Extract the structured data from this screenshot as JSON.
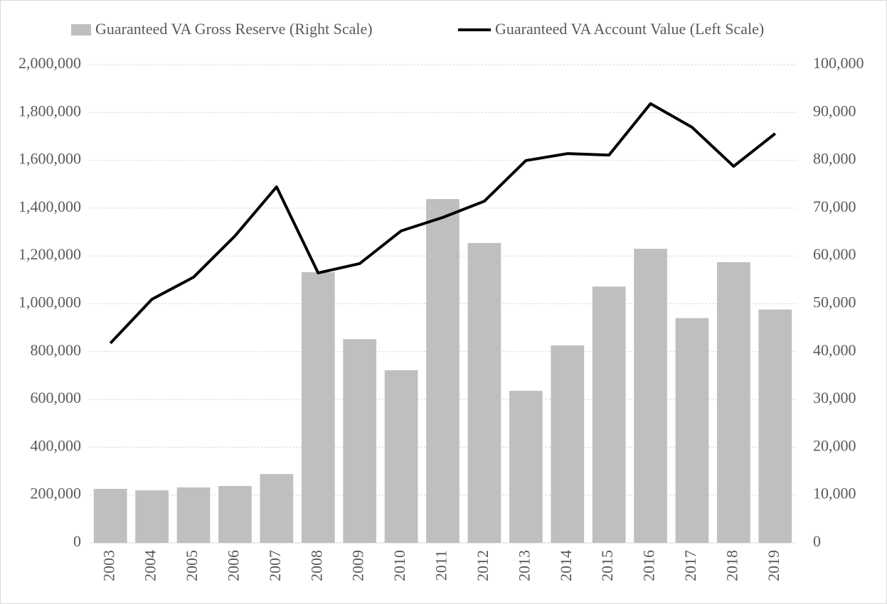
{
  "chart_data": {
    "type": "bar_line",
    "categories": [
      "2003",
      "2004",
      "2005",
      "2006",
      "2007",
      "2008",
      "2009",
      "2010",
      "2011",
      "2012",
      "2013",
      "2014",
      "2015",
      "2016",
      "2017",
      "2018",
      "2019"
    ],
    "series": [
      {
        "name": "Guaranteed VA Gross Reserve (Right Scale)",
        "type": "bar",
        "axis": "y2",
        "color": "#bfbfbf",
        "values": [
          11300,
          11000,
          11600,
          11900,
          14400,
          56600,
          42600,
          36100,
          71900,
          62700,
          31800,
          41300,
          53600,
          61500,
          47000,
          58700,
          48800
        ]
      },
      {
        "name": "Guaranteed VA Account Value (Left Scale)",
        "type": "line",
        "axis": "y",
        "color": "#000000",
        "values": [
          835000,
          1019000,
          1111000,
          1284000,
          1489000,
          1129000,
          1168000,
          1305000,
          1361000,
          1429000,
          1599000,
          1628000,
          1622000,
          1837000,
          1738000,
          1575000,
          1712000
        ]
      }
    ],
    "ylim": [
      0,
      2000000
    ],
    "yticks": [
      0,
      {
        "value": 200000,
        "label": "200,000"
      },
      {
        "value": 400000,
        "label": "400,000"
      },
      {
        "value": 600000,
        "label": "600,000"
      },
      {
        "value": 800000,
        "label": "800,000"
      },
      {
        "value": 1000000,
        "label": "1,000,000"
      },
      {
        "value": 1200000,
        "label": "1,200,000"
      },
      {
        "value": 1400000,
        "label": "1,400,000"
      },
      {
        "value": 1600000,
        "label": "1,600,000"
      },
      {
        "value": 1800000,
        "label": "1,800,000"
      },
      {
        "value": 2000000,
        "label": "2,000,000"
      }
    ],
    "y2lim": [
      0,
      100000
    ],
    "y2ticks": [
      0,
      {
        "value": 10000,
        "label": "10,000"
      },
      {
        "value": 20000,
        "label": "20,000"
      },
      {
        "value": 30000,
        "label": "30,000"
      },
      {
        "value": 40000,
        "label": "40,000"
      },
      {
        "value": 50000,
        "label": "50,000"
      },
      {
        "value": 60000,
        "label": "60,000"
      },
      {
        "value": 70000,
        "label": "70,000"
      },
      {
        "value": 80000,
        "label": "80,000"
      },
      {
        "value": 90000,
        "label": "90,000"
      },
      {
        "value": 100000,
        "label": "100,000"
      }
    ],
    "grid": true,
    "legend": "top"
  }
}
